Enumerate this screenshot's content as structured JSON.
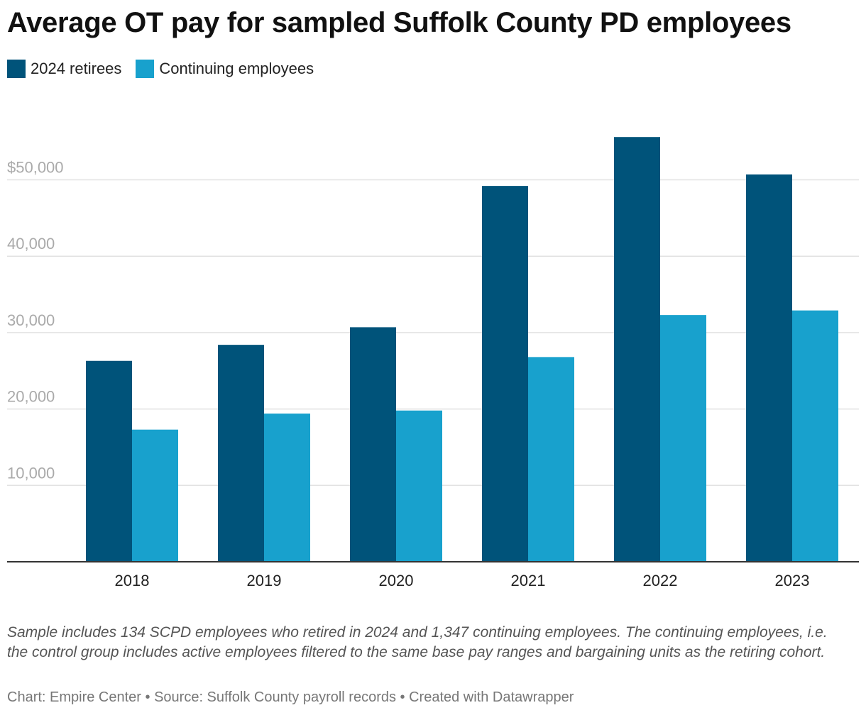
{
  "title": "Average OT pay for sampled Suffolk County PD employees",
  "colors": {
    "retirees": "#00537a",
    "continuing": "#18a1cd",
    "grid": "#e2e2e2",
    "axis": "#333333"
  },
  "legend": [
    {
      "label": "2024 retirees",
      "color": "#00537a"
    },
    {
      "label": "Continuing employees",
      "color": "#18a1cd"
    }
  ],
  "chart_data": {
    "type": "bar",
    "categories": [
      "2018",
      "2019",
      "2020",
      "2021",
      "2022",
      "2023"
    ],
    "series": [
      {
        "name": "2024 retirees",
        "values": [
          26300,
          28400,
          30700,
          49200,
          55600,
          50700
        ]
      },
      {
        "name": "Continuing employees",
        "values": [
          17300,
          19400,
          19800,
          26800,
          32300,
          32900
        ]
      }
    ],
    "yticks": [
      10000,
      20000,
      30000,
      40000,
      50000
    ],
    "ytick_labels": [
      "10,000",
      "20,000",
      "30,000",
      "40,000",
      "$50,000"
    ],
    "ylim": [
      0,
      60000
    ],
    "grid": true,
    "legend_position": "top-left"
  },
  "notes": "Sample includes 134 SCPD employees who retired in 2024 and 1,347 continuing employees. The continuing employees, i.e. the control group includes active employees filtered to the same base pay ranges and bargaining units as the retiring cohort.",
  "credit": "Chart: Empire Center • Source: Suffolk County payroll records • Created with Datawrapper"
}
